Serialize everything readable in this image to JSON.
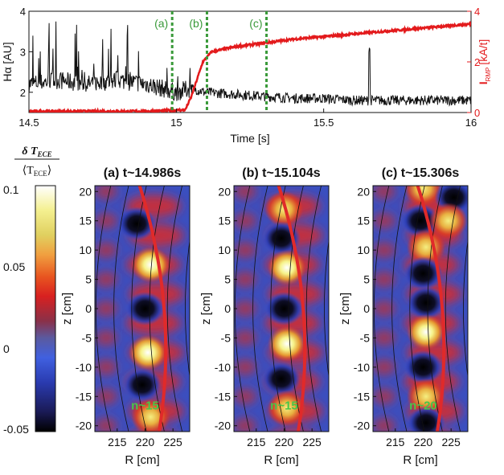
{
  "chart_data": [
    {
      "type": "line",
      "xlabel": "Time [s]",
      "ylabel_left": "Hα [AU]",
      "ylabel_right": "I",
      "ylabel_right_sub": "RMP",
      "ylabel_right_unit": "[kA/t]",
      "xlim": [
        14.5,
        16
      ],
      "ylim_left": [
        1.5,
        4
      ],
      "ylim_right": [
        0,
        4
      ],
      "x_ticks": [
        "14.5",
        "15",
        "15.5",
        "16"
      ],
      "y_ticks_left": [
        "2",
        "3",
        "4"
      ],
      "y_ticks_right": [
        "0",
        "2",
        "4"
      ],
      "colors": {
        "halpha": "#111111",
        "irmp": "#e31a1c",
        "markers": "#3a9a3a"
      },
      "series": [
        {
          "name": "Hα",
          "axis": "left",
          "kind": "noisy",
          "x": [
            14.5,
            14.6,
            14.7,
            14.8,
            14.9,
            14.95,
            15.0,
            15.05,
            15.1,
            15.2,
            15.3,
            15.4,
            15.5,
            15.6,
            15.7,
            15.8,
            15.9,
            16.0
          ],
          "y": [
            2.2,
            2.3,
            2.2,
            2.3,
            2.2,
            2.1,
            2.0,
            2.1,
            2.0,
            1.95,
            1.9,
            1.85,
            1.85,
            1.8,
            1.8,
            1.8,
            1.8,
            1.8
          ]
        },
        {
          "name": "I_RMP",
          "axis": "right",
          "x": [
            14.5,
            14.9,
            15.03,
            15.05,
            15.07,
            15.09,
            15.12,
            15.2,
            15.3,
            15.4,
            15.5,
            15.7,
            15.9,
            16.0
          ],
          "y": [
            0.05,
            0.05,
            0.1,
            0.6,
            1.3,
            2.0,
            2.4,
            2.6,
            2.75,
            2.9,
            3.0,
            3.2,
            3.4,
            3.5
          ]
        }
      ],
      "markers": [
        {
          "label": "(a)",
          "x": 14.986
        },
        {
          "label": "(b)",
          "x": 15.104
        },
        {
          "label": "(c)",
          "x": 15.306
        }
      ]
    },
    {
      "type": "heatmap",
      "colorbar": {
        "label_top": "δ T",
        "label_top_sub": "ECE",
        "label_bottom": "⟨T",
        "label_bottom_sub": "ECE",
        "label_bottom_end": "⟩",
        "range": [
          -0.05,
          0.1
        ],
        "ticks": [
          "0.1",
          "0.05",
          "0",
          "-0.05"
        ],
        "colors": [
          "#000000",
          "#1a1a55",
          "#2a3bb0",
          "#4060e0",
          "#5a5aa0",
          "#8a3048",
          "#d82020",
          "#e85520",
          "#f0a040",
          "#f0e070",
          "#ffffff"
        ]
      },
      "panels": [
        {
          "title": "(a) t~14.986s",
          "mode": "n~15",
          "xlabel": "R [cm]",
          "ylabel": "z [cm]",
          "x_ticks": [
            "215",
            "220",
            "225"
          ],
          "y_ticks": [
            "20",
            "15",
            "10",
            "5",
            "0",
            "-5",
            "-10",
            "-15",
            "-20"
          ],
          "xlim": [
            211,
            228
          ],
          "ylim": [
            -21,
            21
          ],
          "blobs": [
            {
              "r": 218.5,
              "z": 14.5,
              "v": -0.05
            },
            {
              "r": 221,
              "z": 7.5,
              "v": 0.1
            },
            {
              "r": 220,
              "z": 0,
              "v": -0.05
            },
            {
              "r": 220.5,
              "z": -7.5,
              "v": 0.1
            },
            {
              "r": 219.5,
              "z": -13,
              "v": -0.05
            },
            {
              "r": 221,
              "z": -18.5,
              "v": 0.06
            }
          ]
        },
        {
          "title": "(b) t~15.104s",
          "mode": "n~15",
          "xlabel": "R [cm]",
          "ylabel": "z [cm]",
          "x_ticks": [
            "215",
            "220",
            "225"
          ],
          "y_ticks": [
            "20",
            "15",
            "10",
            "5",
            "0",
            "-5",
            "-10",
            "-15",
            "-20"
          ],
          "xlim": [
            211,
            228
          ],
          "ylim": [
            -21,
            21
          ],
          "blobs": [
            {
              "r": 220,
              "z": 17,
              "v": 0.06
            },
            {
              "r": 219.5,
              "z": 12,
              "v": -0.05
            },
            {
              "r": 220.5,
              "z": 7,
              "v": 0.08
            },
            {
              "r": 220,
              "z": 0,
              "v": -0.05
            },
            {
              "r": 220.5,
              "z": -6,
              "v": 0.09
            },
            {
              "r": 219.5,
              "z": -12,
              "v": -0.05
            },
            {
              "r": 220.5,
              "z": -17,
              "v": 0.05
            }
          ]
        },
        {
          "title": "(c) t~15.306s",
          "mode": "n~20",
          "xlabel": "R [cm]",
          "ylabel": "z [cm]",
          "x_ticks": [
            "215",
            "220",
            "225"
          ],
          "y_ticks": [
            "20",
            "15",
            "10",
            "5",
            "0",
            "-5",
            "-10",
            "-15",
            "-20"
          ],
          "xlim": [
            211,
            228
          ],
          "ylim": [
            -21,
            21
          ],
          "blobs": [
            {
              "r": 220,
              "z": 20.5,
              "v": 0.07
            },
            {
              "r": 225.5,
              "z": 19,
              "v": -0.05
            },
            {
              "r": 219.5,
              "z": 15,
              "v": -0.05
            },
            {
              "r": 224.5,
              "z": 15,
              "v": 0.06
            },
            {
              "r": 220.5,
              "z": 10.5,
              "v": 0.06
            },
            {
              "r": 220,
              "z": 6,
              "v": -0.05
            },
            {
              "r": 220.5,
              "z": 1,
              "v": -0.05
            },
            {
              "r": 220.5,
              "z": -4,
              "v": 0.1
            },
            {
              "r": 220,
              "z": -10,
              "v": -0.05
            },
            {
              "r": 220.5,
              "z": -15,
              "v": 0.07
            },
            {
              "r": 220.5,
              "z": -19.5,
              "v": -0.05
            }
          ]
        }
      ]
    }
  ]
}
